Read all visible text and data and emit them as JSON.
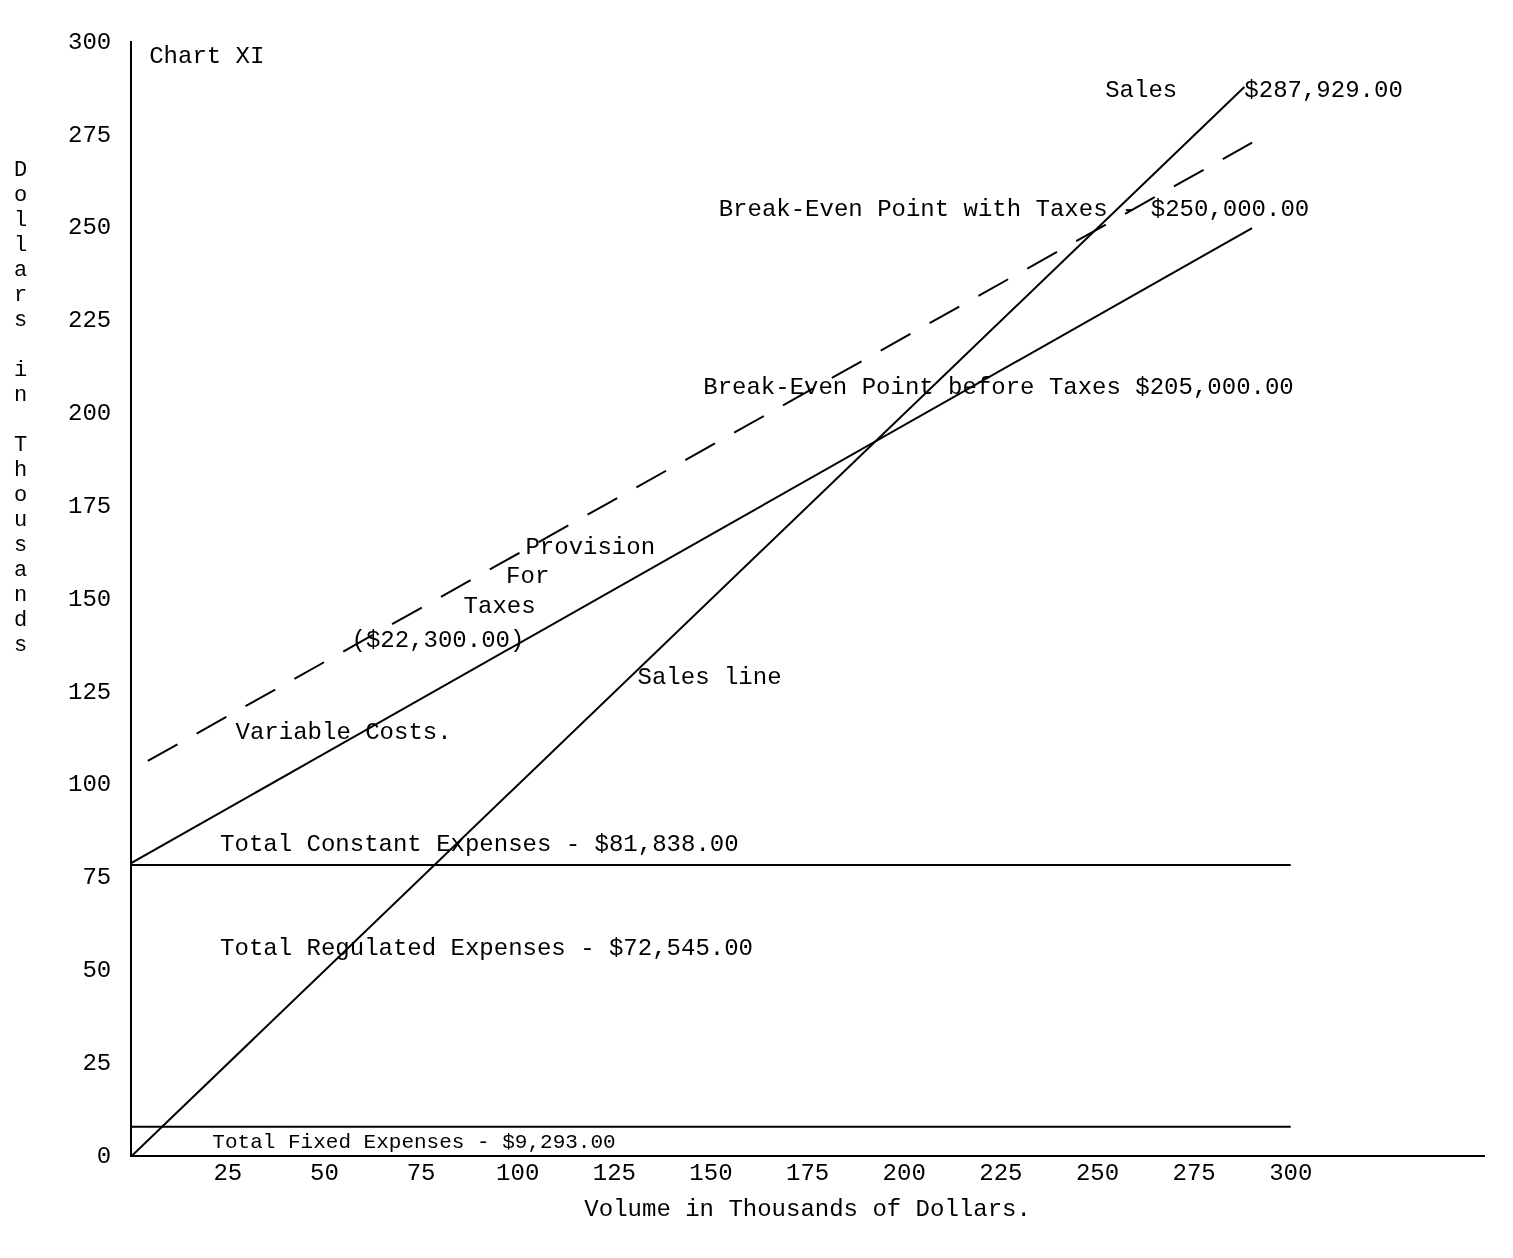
{
  "chart_data": {
    "type": "line",
    "title": "Chart XI",
    "xlabel": "Volume in Thousands of Dollars.",
    "ylabel": "Dollars in Thousands",
    "xlim": [
      0,
      350
    ],
    "xticks": [
      {
        "value": 0,
        "label": null
      },
      25,
      50,
      75,
      100,
      125,
      150,
      175,
      200,
      225,
      250,
      275,
      300
    ],
    "ylim": [
      0,
      300
    ],
    "yticks": [
      0,
      25,
      50,
      75,
      100,
      125,
      150,
      175,
      200,
      225,
      250,
      275,
      300
    ],
    "grid": false,
    "legend": false,
    "marker": "none",
    "series": [
      {
        "color": "#000000",
        "x": [
          0,
          288
        ],
        "values": [
          0,
          288
        ],
        "line_style": "solid"
      },
      {
        "color": "#000000",
        "x": [
          0,
          290
        ],
        "values": [
          79,
          250
        ],
        "line_style": "solid"
      },
      {
        "color": "#000000",
        "x": [
          0,
          290
        ],
        "values": [
          104,
          273
        ],
        "line_style": "dashed"
      },
      {
        "color": "#000000",
        "x": [
          0,
          300
        ],
        "values": [
          78.5,
          78.5
        ],
        "line_style": "solid"
      },
      {
        "color": "#000000",
        "x": [
          0,
          300
        ],
        "values": [
          8,
          8
        ],
        "line_style": "solid"
      }
    ],
    "annotations": [
      "Sales",
      {
        "text": "$287,929.00",
        "x": 288,
        "y": 287
      },
      "Break-Even Point with Taxes - $250,000.00",
      "Break-Even Point before Taxes $205,000.00",
      {
        "text": "Provision",
        "x": 102,
        "y": 164
      },
      "For",
      "Taxes",
      "($22,300.00)",
      {
        "text": "Sales line",
        "x": 131,
        "y": 129
      },
      "Variable Costs.",
      "Total Constant Expenses - $81,838.00",
      "Total Regulated Expenses - $72,545.00",
      "Total Fixed Expenses - $9,293.00"
    ]
  }
}
